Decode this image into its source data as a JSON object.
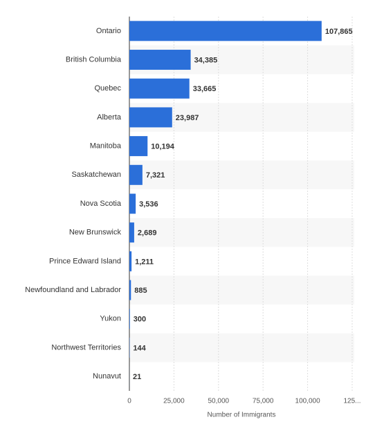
{
  "chart_data": {
    "type": "bar",
    "orientation": "horizontal",
    "x_axis_label": "Number of Immigrants",
    "categories": [
      "Ontario",
      "British Columbia",
      "Quebec",
      "Alberta",
      "Manitoba",
      "Saskatchewan",
      "Nova Scotia",
      "New Brunswick",
      "Prince Edward Island",
      "Newfoundland and Labrador",
      "Yukon",
      "Northwest Territories",
      "Nunavut"
    ],
    "values": [
      107865,
      34385,
      33665,
      23987,
      10194,
      7321,
      3536,
      2689,
      1211,
      885,
      300,
      144,
      21
    ],
    "value_labels": [
      "107,865",
      "34,385",
      "33,665",
      "23,987",
      "10,194",
      "7,321",
      "3,536",
      "2,689",
      "1,211",
      "885",
      "300",
      "144",
      "21"
    ],
    "color": "#2b6fd9",
    "xlim": [
      0,
      125000
    ],
    "xticks": [
      0,
      {
        "value": 25000,
        "label": "25,000"
      },
      {
        "value": 50000,
        "label": "50,000"
      },
      {
        "value": 75000,
        "label": "75,000"
      },
      {
        "value": 100000,
        "label": "100,000"
      },
      {
        "value": 125000,
        "label": "125..."
      }
    ],
    "grid": true
  }
}
